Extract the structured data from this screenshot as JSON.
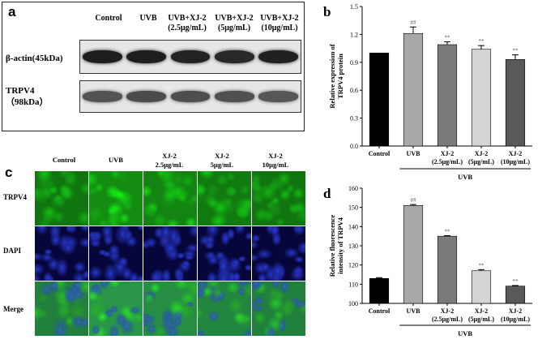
{
  "panel_a": {
    "letter": "a",
    "lanes": [
      "Control",
      "UVB",
      "UVB+XJ-2\n(2.5μg/mL)",
      "UVB+XJ-2\n(5μg/mL)",
      "UVB+XJ-2\n(10μg/mL)"
    ],
    "rows": [
      {
        "label": "β-actin(45kDa)",
        "intensity": [
          1.0,
          1.0,
          0.97,
          0.93,
          0.98
        ]
      },
      {
        "label": "TRPV4\n（98kDa）",
        "intensity": [
          0.62,
          0.68,
          0.66,
          0.64,
          0.6
        ]
      }
    ]
  },
  "panel_c": {
    "letter": "c",
    "columns": [
      "Control",
      "UVB",
      "XJ-2\n2.5μg/mL",
      "XJ-2\n5μg/mL",
      "XJ-2\n10μg/mL"
    ],
    "rows": [
      "TRPV4",
      "DAPI",
      "Merge"
    ]
  },
  "chart_data": [
    {
      "letter": "b",
      "type": "bar",
      "ylabel": "Relative expression of\nTRPV4 protein",
      "ylim": [
        0,
        1.5
      ],
      "yticks": [
        "0.0",
        "0.3",
        "0.6",
        "0.9",
        "1.2",
        "1.5"
      ],
      "categories": [
        "Control",
        "UVB",
        "XJ-2\n(2.5μg/mL)",
        "XJ-2\n(5μg/mL)",
        "XJ-2\n(10μg/mL)"
      ],
      "values": [
        1.0,
        1.21,
        1.09,
        1.04,
        0.93
      ],
      "errors": [
        0.0,
        0.07,
        0.03,
        0.04,
        0.05
      ],
      "annotations": [
        "",
        "##",
        "**",
        "**",
        "**"
      ],
      "colors": [
        "#000000",
        "#a8a8a8",
        "#7a7a7a",
        "#d4d4d4",
        "#595959"
      ],
      "group_label": "UVB"
    },
    {
      "letter": "d",
      "type": "bar",
      "ylabel": "Relative fluorescence\nintensity of TRPV4",
      "ylim": [
        100,
        160
      ],
      "yticks": [
        "100",
        "110",
        "120",
        "130",
        "140",
        "150",
        "160"
      ],
      "categories": [
        "Control",
        "UVB",
        "XJ-2\n(2.5μg/mL)",
        "XJ-2\n(5μg/mL)",
        "XJ-2\n(10μg/mL)"
      ],
      "values": [
        113,
        151,
        135,
        117,
        109
      ],
      "errors": [
        0.4,
        0.5,
        0.3,
        0.6,
        0.3
      ],
      "annotations": [
        "",
        "##",
        "**",
        "**",
        "**"
      ],
      "colors": [
        "#000000",
        "#a8a8a8",
        "#7a7a7a",
        "#d4d4d4",
        "#595959"
      ],
      "group_label": "UVB"
    }
  ]
}
